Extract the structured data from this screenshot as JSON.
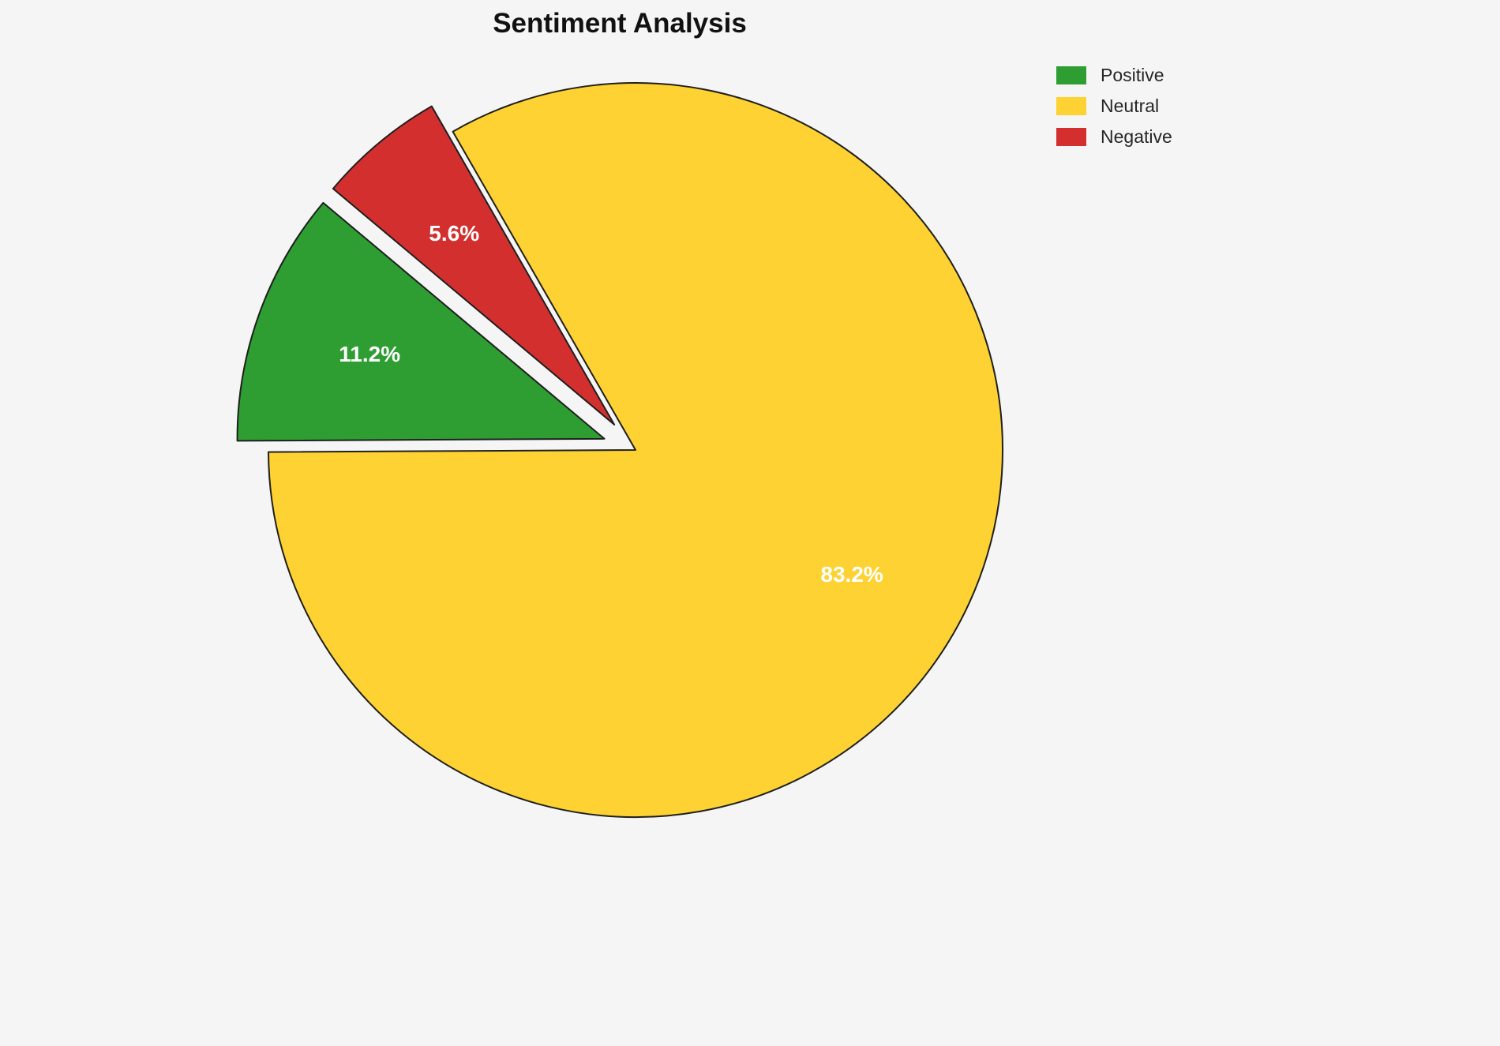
{
  "chart_data": {
    "type": "pie",
    "title": "Sentiment Analysis",
    "labels": [
      "Positive",
      "Neutral",
      "Negative"
    ],
    "values": [
      11.2,
      83.2,
      5.6
    ],
    "autopct": [
      "11.2%",
      "83.2%",
      "5.6%"
    ],
    "colors": [
      "#2e9d32",
      "#fdd232",
      "#d32f2f"
    ],
    "explode": [
      0.09,
      0,
      0.09
    ],
    "start_angle": 140,
    "direction": "counterclockwise",
    "edge_color": "#1f1f1f",
    "label_color": "#ffffff",
    "legend_position": "upper right",
    "background_color": "#f5f5f5"
  }
}
